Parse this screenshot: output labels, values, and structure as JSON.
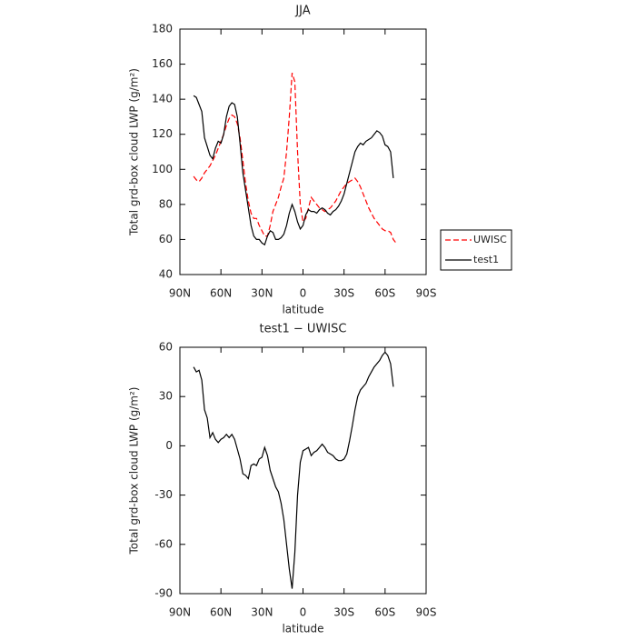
{
  "chart_data": [
    {
      "type": "line",
      "title": "JJA",
      "x_label": "latitude",
      "y_label": "Total grd-box cloud LWP (g/m²)",
      "x": [
        80,
        78,
        76,
        74,
        72,
        70,
        68,
        66,
        64,
        62,
        60,
        58,
        56,
        54,
        52,
        50,
        48,
        46,
        44,
        42,
        40,
        38,
        36,
        34,
        32,
        30,
        28,
        26,
        24,
        22,
        20,
        18,
        16,
        14,
        12,
        10,
        8,
        6,
        4,
        2,
        0,
        -2,
        -4,
        -6,
        -8,
        -10,
        -12,
        -14,
        -16,
        -18,
        -20,
        -22,
        -24,
        -26,
        -28,
        -30,
        -32,
        -34,
        -36,
        -38,
        -40,
        -42,
        -44,
        -46,
        -48,
        -50,
        -52,
        -54,
        -56,
        -58,
        -60,
        -62,
        -64,
        -66,
        -68
      ],
      "series": [
        {
          "name": "UWISC",
          "color": "#ff0000",
          "dash": true,
          "values": [
            96,
            94,
            93,
            95,
            98,
            100,
            102,
            105,
            108,
            112,
            116,
            120,
            125,
            129,
            131,
            130,
            126,
            118,
            105,
            92,
            82,
            75,
            72,
            72,
            68,
            65,
            62,
            62,
            68,
            76,
            80,
            84,
            90,
            95,
            110,
            130,
            155,
            150,
            110,
            80,
            70,
            72,
            78,
            84,
            82,
            80,
            78,
            77,
            76,
            77,
            78,
            80,
            82,
            85,
            88,
            90,
            92,
            93,
            94,
            95,
            93,
            90,
            86,
            82,
            78,
            75,
            72,
            70,
            68,
            66,
            65,
            65,
            64,
            60,
            58
          ]
        },
        {
          "name": "test1",
          "color": "#000000",
          "dash": false,
          "values": [
            142,
            141,
            137,
            133,
            118,
            113,
            108,
            106,
            112,
            116,
            115,
            120,
            130,
            136,
            138,
            137,
            130,
            115,
            98,
            88,
            78,
            68,
            62,
            60,
            60,
            58,
            57,
            62,
            65,
            64,
            60,
            60,
            61,
            63,
            68,
            75,
            80,
            76,
            70,
            66,
            68,
            74,
            77,
            76,
            76,
            75,
            77,
            78,
            77,
            75,
            74,
            76,
            77,
            79,
            82,
            86,
            92,
            98,
            104,
            110,
            113,
            115,
            114,
            116,
            117,
            118,
            120,
            122,
            121,
            119,
            114,
            113,
            110,
            95,
            null
          ]
        }
      ],
      "xlim": [
        90,
        -90
      ],
      "xticks": [
        {
          "value": 90,
          "label": "90N"
        },
        {
          "value": 60,
          "label": "60N"
        },
        {
          "value": 30,
          "label": "30N"
        },
        0,
        {
          "value": -30,
          "label": "30S"
        },
        {
          "value": -60,
          "label": "60S"
        },
        {
          "value": -90,
          "label": "90S"
        }
      ],
      "ylim": [
        40,
        180
      ],
      "yticks": [
        40,
        60,
        80,
        100,
        120,
        140,
        160,
        180
      ],
      "legend": "right"
    },
    {
      "type": "line",
      "title": "test1 − UWISC",
      "x_label": "latitude",
      "y_label": "Total grd-box cloud LWP (g/m²)",
      "x": [
        80,
        78,
        76,
        74,
        72,
        70,
        68,
        66,
        64,
        62,
        60,
        58,
        56,
        54,
        52,
        50,
        48,
        46,
        44,
        42,
        40,
        38,
        36,
        34,
        32,
        30,
        28,
        26,
        24,
        22,
        20,
        18,
        16,
        14,
        12,
        10,
        8,
        6,
        4,
        2,
        0,
        -2,
        -4,
        -6,
        -8,
        -10,
        -12,
        -14,
        -16,
        -18,
        -20,
        -22,
        -24,
        -26,
        -28,
        -30,
        -32,
        -34,
        -36,
        -38,
        -40,
        -42,
        -44,
        -46,
        -48,
        -50,
        -52,
        -54,
        -56,
        -58,
        -60,
        -62,
        -64,
        -66,
        -68
      ],
      "series": [
        {
          "color": "#000000",
          "dash": false,
          "values": [
            48,
            45,
            46,
            40,
            22,
            17,
            5,
            8,
            4,
            2,
            4,
            5,
            7,
            5,
            7,
            4,
            -2,
            -8,
            -17,
            -18,
            -20,
            -12,
            -11,
            -12,
            -8,
            -7,
            -1,
            -6,
            -15,
            -20,
            -25,
            -28,
            -35,
            -45,
            -60,
            -75,
            -87,
            -65,
            -30,
            -10,
            -3,
            -2,
            -1,
            -6,
            -4,
            -3,
            -1,
            1,
            -1,
            -4,
            -5,
            -6,
            -8,
            -9,
            -9,
            -8,
            -5,
            3,
            12,
            22,
            30,
            34,
            36,
            38,
            42,
            45,
            48,
            50,
            52,
            55,
            57,
            55,
            50,
            36,
            null
          ]
        }
      ],
      "xlim": [
        90,
        -90
      ],
      "xticks": [
        {
          "value": 90,
          "label": "90N"
        },
        {
          "value": 60,
          "label": "60N"
        },
        {
          "value": 30,
          "label": "30N"
        },
        0,
        {
          "value": -30,
          "label": "30S"
        },
        {
          "value": -60,
          "label": "60S"
        },
        {
          "value": -90,
          "label": "90S"
        }
      ],
      "ylim": [
        -90,
        60
      ],
      "yticks": [
        -90,
        -60,
        -30,
        0,
        30,
        60
      ]
    }
  ]
}
